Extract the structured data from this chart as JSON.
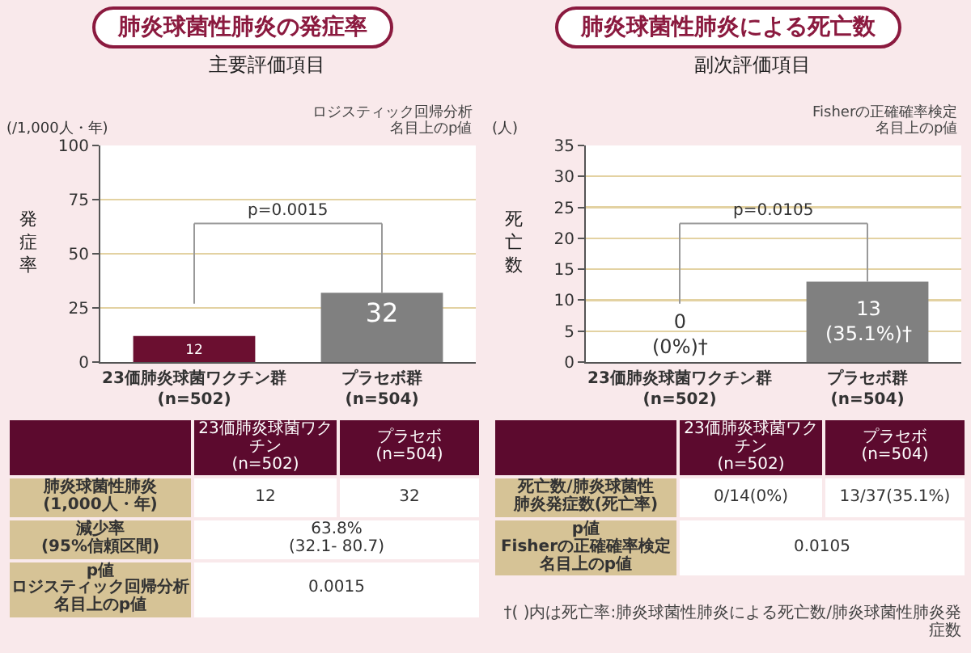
{
  "chart_data": [
    {
      "type": "bar",
      "title": "肺炎球菌性肺炎の発症率",
      "subtitle": "主要評価項目",
      "ylabel": "発症率",
      "categories": [
        "23価肺炎球菌ワクチン群\n(n=502)",
        "プラセボ群\n(n=504)"
      ],
      "values": [
        12,
        32
      ],
      "colors": [
        "#6b0f30",
        "#808080"
      ],
      "data_labels": true,
      "ylim": [
        0,
        100
      ],
      "yticks": [
        0,
        25,
        50,
        75,
        100
      ],
      "grid": "y",
      "annotations": [
        "(/1,000人・年)",
        "ロジスティック回帰分析",
        "名目上のp値",
        "p=0.0015",
        "23価肺炎球菌ワクチン",
        "(n=502)",
        "プラセボ",
        "(n=504)",
        "肺炎球菌性肺炎",
        "(1,000人・年)",
        "12",
        "32",
        "減少率",
        "(95%信頼区間)",
        "63.8%",
        "(32.1- 80.7)",
        "p値",
        "ロジスティック回帰分析",
        "名目上のp値",
        "0.0015"
      ]
    },
    {
      "type": "bar",
      "title": "肺炎球菌性肺炎による死亡数",
      "subtitle": "副次評価項目",
      "ylabel": "死亡数",
      "categories": [
        "23価肺炎球菌ワクチン群\n(n=502)",
        "プラセボ群\n(n=504)"
      ],
      "values": [
        0,
        13
      ],
      "colors": [
        "#6b0f30",
        "#808080"
      ],
      "value_labels": [
        "0\n(0%)†",
        "13\n(35.1%)†"
      ],
      "ylim": [
        0,
        35
      ],
      "yticks": [
        0,
        5,
        10,
        15,
        20,
        25,
        30,
        35
      ],
      "grid": "y",
      "annotations": [
        "(人)",
        "Fisherの正確確率検定",
        "名目上のp値",
        "p=0.0105",
        "23価肺炎球菌ワクチン",
        "(n=502)",
        "プラセボ",
        "(n=504)",
        "死亡数/肺炎球菌性",
        "肺炎発症数(死亡率)",
        "0/14(0%)",
        "13/37(35.1%)",
        "p値",
        "Fisherの正確確率検定",
        "名目上のp値",
        "0.0105",
        "†( )内は死亡率:肺炎球菌性肺炎による死亡数/肺炎球菌性肺炎発症数"
      ]
    }
  ]
}
